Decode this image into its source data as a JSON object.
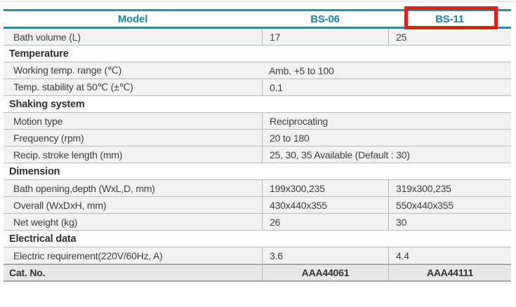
{
  "colors": {
    "teal_accent": "#2b8fa4",
    "teal_text": "#1584a6",
    "highlight_red": "#dd1f18",
    "row_bg": "#f2f2f2",
    "catno_bg": "#e7e7e7"
  },
  "header": {
    "model_label": "Model",
    "col1": "BS-06",
    "col2": "BS-11",
    "highlighted_column": "BS-11"
  },
  "rows": [
    {
      "type": "data2",
      "label": "Bath volume (L)",
      "v1": "17",
      "v2": "25"
    },
    {
      "type": "section",
      "label": "Temperature"
    },
    {
      "type": "span",
      "label": "Working temp. range (℃)",
      "value": "Amb. +5 to 100"
    },
    {
      "type": "span",
      "label": "Temp. stability at 50℃ (±℃)",
      "value": "0.1"
    },
    {
      "type": "section",
      "label": "Shaking system"
    },
    {
      "type": "span",
      "label": "Motion type",
      "value": "Reciprocating"
    },
    {
      "type": "span",
      "label": "Frequency (rpm)",
      "value": "20 to 180"
    },
    {
      "type": "span",
      "label": "Recip. stroke length (mm)",
      "value": "25, 30, 35 Available (Default : 30)"
    },
    {
      "type": "section",
      "label": "Dimension"
    },
    {
      "type": "data2",
      "label": "Bath opening,depth (WxL,D, mm)",
      "v1": "199x300,235",
      "v2": "319x300,235"
    },
    {
      "type": "data2",
      "label": "Overall (WxDxH, mm)",
      "v1": "430x440x355",
      "v2": "550x440x355"
    },
    {
      "type": "data2",
      "label": "Net weight (kg)",
      "v1": "26",
      "v2": "30"
    },
    {
      "type": "section",
      "label": "Electrical data"
    },
    {
      "type": "data2",
      "label": "Electric requirement(220V/60Hz, A)",
      "v1": "3.6",
      "v2": "4.4"
    },
    {
      "type": "catno",
      "label": "Cat. No.",
      "v1": "AAA44061",
      "v2": "AAA44111"
    }
  ]
}
